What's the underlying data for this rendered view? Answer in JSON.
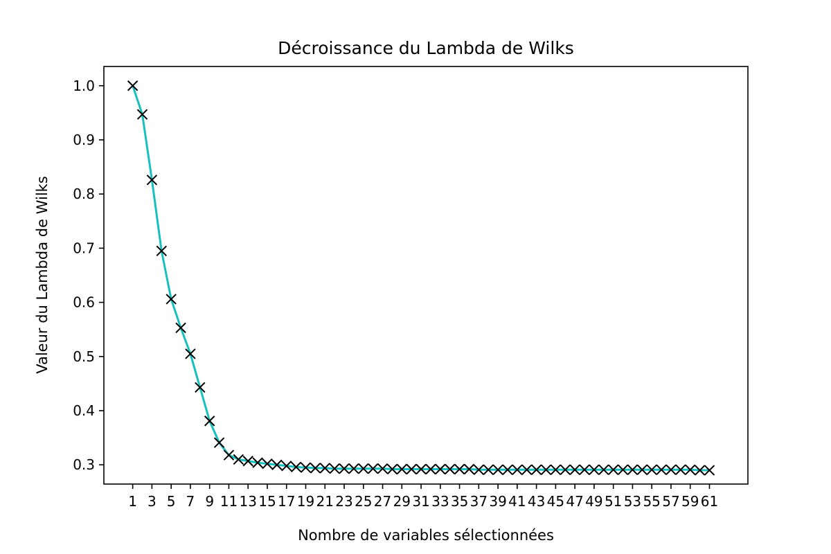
{
  "chart_data": {
    "type": "line",
    "title": "Décroissance du Lambda de Wilks",
    "xlabel": "Nombre de variables sélectionnées",
    "ylabel": "Valeur du Lambda de Wilks",
    "x": [
      1,
      2,
      3,
      4,
      5,
      6,
      7,
      8,
      9,
      10,
      11,
      12,
      13,
      14,
      15,
      16,
      17,
      18,
      19,
      20,
      21,
      22,
      23,
      24,
      25,
      26,
      27,
      28,
      29,
      30,
      31,
      32,
      33,
      34,
      35,
      36,
      37,
      38,
      39,
      40,
      41,
      42,
      43,
      44,
      45,
      46,
      47,
      48,
      49,
      50,
      51,
      52,
      53,
      54,
      55,
      56,
      57,
      58,
      59,
      60,
      61
    ],
    "series": [
      {
        "values": [
          1.0,
          0.947,
          0.826,
          0.695,
          0.606,
          0.553,
          0.505,
          0.443,
          0.381,
          0.341,
          0.318,
          0.31,
          0.307,
          0.304,
          0.302,
          0.3,
          0.298,
          0.296,
          0.295,
          0.294,
          0.294,
          0.293,
          0.293,
          0.293,
          0.293,
          0.293,
          0.293,
          0.292,
          0.292,
          0.292,
          0.292,
          0.292,
          0.292,
          0.292,
          0.292,
          0.292,
          0.291,
          0.291,
          0.291,
          0.291,
          0.291,
          0.291,
          0.291,
          0.291,
          0.291,
          0.291,
          0.291,
          0.291,
          0.291,
          0.291,
          0.291,
          0.291,
          0.291,
          0.291,
          0.291,
          0.291,
          0.291,
          0.291,
          0.291,
          0.29,
          0.29
        ],
        "line_color": "#17bfbf",
        "marker": "x",
        "marker_color": "#000000"
      }
    ],
    "xticks": [
      1,
      3,
      5,
      7,
      9,
      11,
      13,
      15,
      17,
      19,
      21,
      23,
      25,
      27,
      29,
      31,
      33,
      35,
      37,
      39,
      41,
      43,
      45,
      47,
      49,
      51,
      53,
      55,
      57,
      59,
      61
    ],
    "xtick_labels": [
      "1",
      "3",
      "5",
      "7",
      "9",
      "11",
      "13",
      "15",
      "17",
      "19",
      "21",
      "23",
      "25",
      "27",
      "29",
      "31",
      "33",
      "35",
      "37",
      "39",
      "41",
      "43",
      "45",
      "47",
      "49",
      "51",
      "53",
      "55",
      "57",
      "59",
      "61"
    ],
    "yticks": [
      0.3,
      0.4,
      0.5,
      0.6,
      0.7,
      0.8,
      0.9,
      1.0
    ],
    "ytick_labels": [
      "0.3",
      "0.4",
      "0.5",
      "0.6",
      "0.7",
      "0.8",
      "0.9",
      "1.0"
    ],
    "xlim": [
      -2,
      65
    ],
    "ylim": [
      0.2645,
      1.0355
    ],
    "grid": false,
    "legend": "none"
  }
}
